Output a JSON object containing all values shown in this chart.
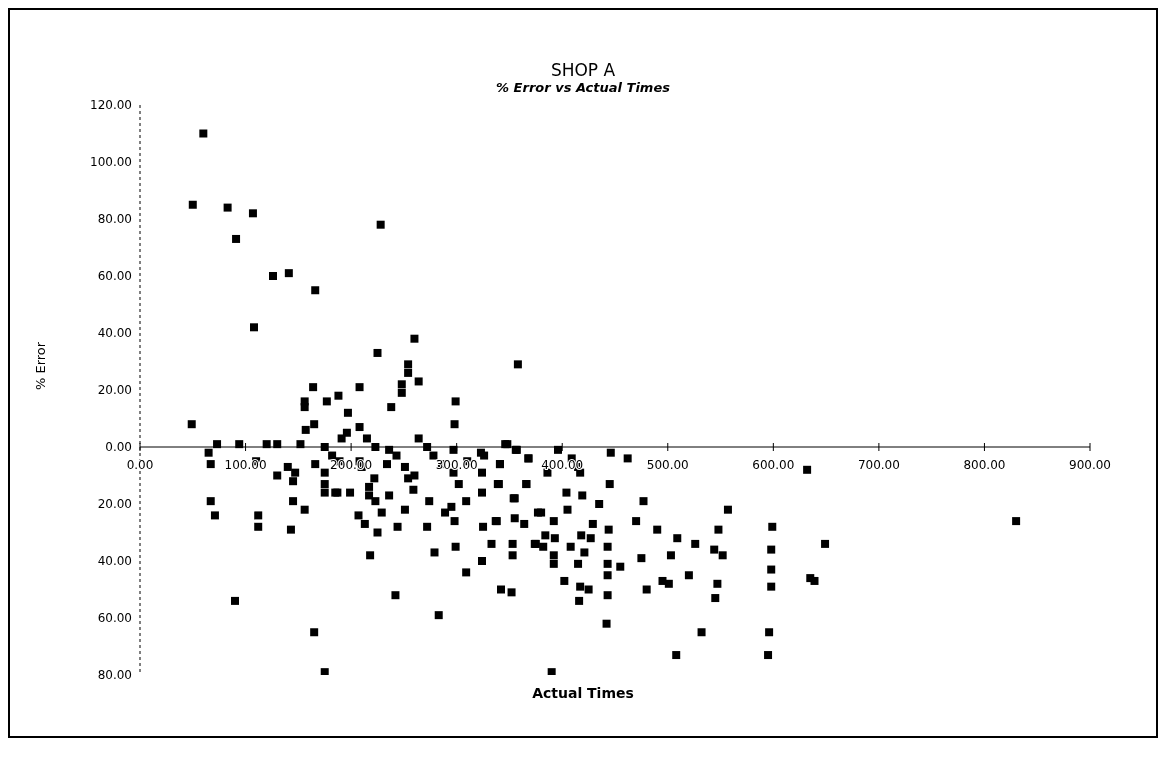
{
  "chart_data": {
    "type": "scatter",
    "title": "SHOP A",
    "subtitle": "% Error vs Actual Times",
    "xlabel": "Actual Times",
    "ylabel": "% Error",
    "marker": "square",
    "grid": false,
    "legend": false,
    "xlim": [
      0,
      900
    ],
    "xticks": [
      {
        "value": 0,
        "label": "0.00"
      },
      {
        "value": 100,
        "label": "100.00"
      },
      {
        "value": 200,
        "label": "200.00"
      },
      {
        "value": 300,
        "label": "300.00"
      },
      {
        "value": 400,
        "label": "400.00"
      },
      {
        "value": 500,
        "label": "500.00"
      },
      {
        "value": 600,
        "label": "600.00"
      },
      {
        "value": 700,
        "label": "700.00"
      },
      {
        "value": 800,
        "label": "800.00"
      },
      {
        "value": 900,
        "label": "900.00"
      }
    ],
    "ylim": [
      -80,
      120
    ],
    "yticks": [
      {
        "value": -80,
        "label": "80.00"
      },
      {
        "value": -60,
        "label": "60.00"
      },
      {
        "value": -40,
        "label": "40.00"
      },
      {
        "value": -20,
        "label": "20.00"
      },
      {
        "value": 0,
        "label": "0.00"
      },
      {
        "value": 20,
        "label": "20.00"
      },
      {
        "value": 40,
        "label": "40.00"
      },
      {
        "value": 60,
        "label": "60.00"
      },
      {
        "value": 80,
        "label": "80.00"
      },
      {
        "value": 100,
        "label": "100.00"
      },
      {
        "value": 120,
        "label": "120.00"
      }
    ],
    "series": [
      {
        "color": "#000000",
        "x": [
          60,
          50,
          83,
          107,
          91,
          228,
          126,
          141,
          166,
          108,
          260,
          225,
          358,
          254,
          254,
          264,
          248,
          248,
          208,
          164,
          156,
          156,
          177,
          188,
          299,
          238,
          197,
          298,
          49,
          165,
          157,
          208,
          67,
          71,
          112,
          112,
          143,
          145,
          156,
          207,
          213,
          225,
          218,
          251,
          244,
          272,
          279,
          299,
          309,
          324,
          333,
          353,
          353,
          342,
          352,
          242,
          283,
          165,
          175,
          90,
          298,
          289,
          274,
          325,
          337,
          355,
          364,
          354,
          309,
          295,
          229,
          236,
          223,
          217,
          187,
          199,
          175,
          377,
          374,
          73,
          65,
          67,
          94,
          110,
          120,
          130,
          152,
          140,
          147,
          145,
          130,
          166,
          175,
          182,
          189,
          175,
          175,
          185,
          191,
          196,
          208,
          210,
          215,
          223,
          222,
          217,
          236,
          243,
          234,
          251,
          254,
          264,
          272,
          278,
          286,
          260,
          259,
          297,
          297,
          302,
          310,
          323,
          326,
          324,
          324,
          341,
          340,
          346,
          356,
          368,
          366,
          348,
          357,
          341,
          368,
          396,
          409,
          415,
          417,
          386,
          446,
          462,
          339,
          355,
          366,
          404,
          419,
          445,
          435,
          477,
          405,
          338,
          380,
          392,
          429,
          444,
          470,
          490,
          509,
          526,
          548,
          557,
          599,
          632,
          649,
          830,
          384,
          393,
          418,
          427,
          408,
          421,
          375,
          382,
          392,
          392,
          415,
          443,
          443,
          443,
          443,
          455,
          475,
          503,
          544,
          552,
          598,
          598,
          598,
          402,
          417,
          425,
          416,
          480,
          495,
          501,
          520,
          547,
          545,
          635,
          639,
          442,
          532,
          508,
          596,
          595,
          390
        ],
        "values": [
          110,
          85,
          84,
          82,
          73,
          78,
          60,
          61,
          55,
          42,
          38,
          33,
          29,
          29,
          26,
          23,
          22,
          19,
          21,
          21,
          16,
          14,
          16,
          18,
          16,
          14,
          12,
          8,
          8,
          8,
          6,
          7,
          -19,
          -24,
          -24,
          -28,
          -29,
          -19,
          -22,
          -24,
          -27,
          -30,
          -38,
          -22,
          -28,
          -28,
          -37,
          -35,
          -44,
          -40,
          -34,
          -34,
          -38,
          -50,
          -51,
          -52,
          -59,
          -65,
          -79,
          -54,
          -26,
          -23,
          -19,
          -28,
          -26,
          -25,
          -27,
          -18,
          -19,
          -21,
          -23,
          -17,
          -19,
          -17,
          -16,
          -16,
          -16,
          -23,
          -34,
          1,
          -2,
          -6,
          1,
          -5,
          1,
          1,
          1,
          -7,
          -9,
          -12,
          -10,
          -6,
          0,
          -3,
          -5,
          -9,
          -13,
          -16,
          3,
          5,
          -5,
          -7,
          3,
          0,
          -11,
          -14,
          -1,
          -3,
          -6,
          -7,
          -11,
          3,
          0,
          -3,
          -6,
          -10,
          -15,
          -1,
          -9,
          -13,
          -5,
          -2,
          -3,
          -9,
          -16,
          -6,
          -13,
          1,
          -1,
          -4,
          -13,
          1,
          -1,
          -6,
          -4,
          -1,
          -4,
          -7,
          -9,
          -9,
          -2,
          -4,
          -13,
          -18,
          -13,
          -16,
          -17,
          -13,
          -20,
          -19,
          -22,
          -26,
          -23,
          -26,
          -27,
          -29,
          -26,
          -29,
          -32,
          -34,
          -29,
          -22,
          -28,
          -8,
          -34,
          -26,
          -31,
          -32,
          -31,
          -32,
          -35,
          -37,
          -34,
          -35,
          -38,
          -41,
          -41,
          -35,
          -41,
          -45,
          -52,
          -42,
          -39,
          -38,
          -36,
          -38,
          -36,
          -43,
          -49,
          -47,
          -49,
          -50,
          -54,
          -50,
          -47,
          -48,
          -45,
          -48,
          -53,
          -46,
          -47,
          -62,
          -65,
          -73,
          -65,
          -73,
          -79
        ]
      }
    ]
  }
}
